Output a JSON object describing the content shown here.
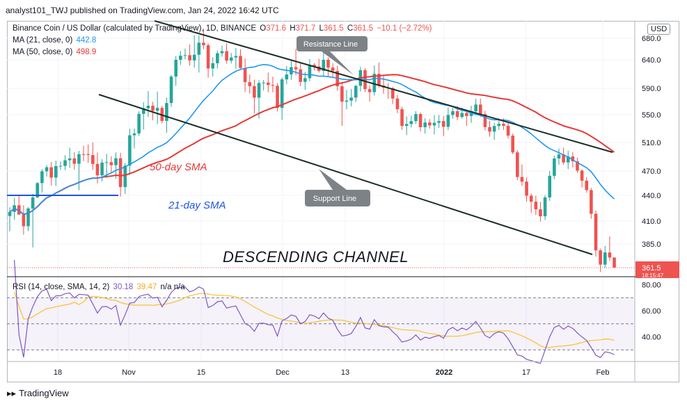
{
  "header": {
    "publisher_line": "analyst101_TWJ published on TradingView.com, Jan 24, 2022 16:42 UTC"
  },
  "legend": {
    "symbol": "Binance Coin / US Dollar (calculated by TradingView), 1D, BINANCE",
    "o_label": "O",
    "o": "371.6",
    "h_label": "H",
    "h": "371.7",
    "l_label": "L",
    "l": "361.5",
    "c_label": "C",
    "c": "361.5",
    "change": "−10.1 (−2.72%)",
    "ma21_label": "MA (21, close, 0)",
    "ma21_value": "442.8",
    "ma50_label": "MA (50, close, 0)",
    "ma50_value": "498.9",
    "rsi_label": "RSI (14, close, SMA, 14, 2)",
    "rsi_value": "30.18",
    "rsi_sma_value": "39.47",
    "rsi_na": "n/a  n/a"
  },
  "currency_button": "USD",
  "footer": {
    "brand": "TradingView"
  },
  "chart_data": {
    "type": "candlestick",
    "y_ticks": [
      "680.0",
      "640.0",
      "590.0",
      "550.0",
      "510.0",
      "470.0",
      "440.0",
      "410.0",
      "385.0"
    ],
    "last_price": "361.5",
    "last_price_sub": "18:15:47",
    "x_ticks": [
      "18",
      "Nov",
      "15",
      "Dec",
      "13",
      "2022",
      "17",
      "Feb"
    ],
    "annotations": {
      "resistance": "Resistance Line",
      "support": "Support Line",
      "sma50": "50-day SMA",
      "sma21": "21-day SMA",
      "channel": "DESCENDING CHANNEL"
    },
    "rsi_ticks": [
      "80.00",
      "60.00",
      "40.00"
    ],
    "colors": {
      "up": "#26a69a",
      "down": "#ef5350",
      "ma21": "#2196f3",
      "ma50": "#e53935",
      "rsi": "#7e57c2",
      "rsi_sma": "#fbc02d",
      "channel": "#1b2d24"
    },
    "candles": [
      [
        415.9,
        426.1,
        398.8,
        420.7
      ],
      [
        420.7,
        437.0,
        411.6,
        428.4
      ],
      [
        428.4,
        439.6,
        417.3,
        417.6
      ],
      [
        417.6,
        428.5,
        395.2,
        404.4
      ],
      [
        404.4,
        426.3,
        399.0,
        424.7
      ],
      [
        424.7,
        442.0,
        381.6,
        437.6
      ],
      [
        437.6,
        456.3,
        437.0,
        455.1
      ],
      [
        455.1,
        472.7,
        443.7,
        469.7
      ],
      [
        469.7,
        478.4,
        463.2,
        475.3
      ],
      [
        475.3,
        482.6,
        452.1,
        461.9
      ],
      [
        461.9,
        484.7,
        451.6,
        476.9
      ],
      [
        476.9,
        483.5,
        471.8,
        477.1
      ],
      [
        477.1,
        492.3,
        471.4,
        485.1
      ],
      [
        485.1,
        502.8,
        474.4,
        487.7
      ],
      [
        487.7,
        496.4,
        471.8,
        480.2
      ],
      [
        480.2,
        498.3,
        446.3,
        493.6
      ],
      [
        493.6,
        505.4,
        483.7,
        493.2
      ],
      [
        493.6,
        507.3,
        481.5,
        492.4
      ],
      [
        492.4,
        510.1,
        471.6,
        479.9
      ],
      [
        479.9,
        496.1,
        454.8,
        464.7
      ],
      [
        464.7,
        486.6,
        457.2,
        481.8
      ],
      [
        481.8,
        494.2,
        461.4,
        482.4
      ],
      [
        482.4,
        490.7,
        467.8,
        478.2
      ],
      [
        478.2,
        496.0,
        460.6,
        487.9
      ],
      [
        487.9,
        495.7,
        438.6,
        450.2
      ],
      [
        450.2,
        481.4,
        441.8,
        477.6
      ],
      [
        477.6,
        529.8,
        465.1,
        520.4
      ],
      [
        520.4,
        530.3,
        501.7,
        523.1
      ],
      [
        523.1,
        555.3,
        519.8,
        551.3
      ],
      [
        551.3,
        568.8,
        528.7,
        559.7
      ],
      [
        559.7,
        585.7,
        546.7,
        563.6
      ],
      [
        563.6,
        569.6,
        541.9,
        555.9
      ],
      [
        555.9,
        584.8,
        536.6,
        560.3
      ],
      [
        560.3,
        563.6,
        537.5,
        541.1
      ],
      [
        541.1,
        575.9,
        524.0,
        567.7
      ],
      [
        567.7,
        613.3,
        561.9,
        610.5
      ],
      [
        610.5,
        647.1,
        594.4,
        640.0
      ],
      [
        640.0,
        656.4,
        631.0,
        647.6
      ],
      [
        647.6,
        660.7,
        640.8,
        648.6
      ],
      [
        648.6,
        668.3,
        629.8,
        638.9
      ],
      [
        638.9,
        685.6,
        626.4,
        649.4
      ],
      [
        649.4,
        685.6,
        617.6,
        671.7
      ],
      [
        671.7,
        697.9,
        659.6,
        667.0
      ],
      [
        667.0,
        670.5,
        608.6,
        624.8
      ],
      [
        624.8,
        644.7,
        610.7,
        633.9
      ],
      [
        633.9,
        657.0,
        624.6,
        652.2
      ],
      [
        652.2,
        666.2,
        645.8,
        656.0
      ],
      [
        656.0,
        670.3,
        633.3,
        638.5
      ],
      [
        638.5,
        652.6,
        633.6,
        644.2
      ],
      [
        644.2,
        661.8,
        624.4,
        647.1
      ],
      [
        647.1,
        659.4,
        623.7,
        625.6
      ],
      [
        625.6,
        642.4,
        584.3,
        600.8
      ],
      [
        600.8,
        614.2,
        581.8,
        593.8
      ],
      [
        593.8,
        605.2,
        551.9,
        575.8
      ],
      [
        575.8,
        604.4,
        544.4,
        599.3
      ],
      [
        599.3,
        604.7,
        586.7,
        600.0
      ],
      [
        600.0,
        617.7,
        584.1,
        595.8
      ],
      [
        595.8,
        610.4,
        584.0,
        594.4
      ],
      [
        594.4,
        599.0,
        555.0,
        560.3
      ],
      [
        560.3,
        608.9,
        542.7,
        605.6
      ],
      [
        605.6,
        629.2,
        597.0,
        614.2
      ],
      [
        614.2,
        640.6,
        604.8,
        627.2
      ],
      [
        627.2,
        660.1,
        613.0,
        623.2
      ],
      [
        623.2,
        635.3,
        593.8,
        601.3
      ],
      [
        601.3,
        618.8,
        587.8,
        607.8
      ],
      [
        607.8,
        641.1,
        602.4,
        631.3
      ],
      [
        631.3,
        634.4,
        621.2,
        628.3
      ],
      [
        628.3,
        641.9,
        617.4,
        620.5
      ],
      [
        620.5,
        661.3,
        611.7,
        640.0
      ],
      [
        640.0,
        644.3,
        611.1,
        626.4
      ],
      [
        626.4,
        634.0,
        610.2,
        620.7
      ],
      [
        620.7,
        629.8,
        586.1,
        593.5
      ],
      [
        593.5,
        600.4,
        534.1,
        569.7
      ],
      [
        569.7,
        587.6,
        558.2,
        571.3
      ],
      [
        571.3,
        588.8,
        562.7,
        575.9
      ],
      [
        575.9,
        596.1,
        569.3,
        594.3
      ],
      [
        594.3,
        627.5,
        585.1,
        621.8
      ],
      [
        621.8,
        625.5,
        584.3,
        588.7
      ],
      [
        588.7,
        594.8,
        569.7,
        584.2
      ],
      [
        584.2,
        630.0,
        578.9,
        615.4
      ],
      [
        615.4,
        635.1,
        591.6,
        594.7
      ],
      [
        594.7,
        611.5,
        581.8,
        591.1
      ],
      [
        591.1,
        599.3,
        574.2,
        590.1
      ],
      [
        590.1,
        592.2,
        566.3,
        574.5
      ],
      [
        574.5,
        580.1,
        552.4,
        558.3
      ],
      [
        558.3,
        561.9,
        528.3,
        533.9
      ],
      [
        533.9,
        547.6,
        520.7,
        536.6
      ],
      [
        536.6,
        548.6,
        531.5,
        540.8
      ],
      [
        540.8,
        555.4,
        536.9,
        551.0
      ],
      [
        551.0,
        553.4,
        525.9,
        532.0
      ],
      [
        532.0,
        544.8,
        522.9,
        538.8
      ],
      [
        538.8,
        543.6,
        529.8,
        534.6
      ],
      [
        534.6,
        549.2,
        521.7,
        538.4
      ],
      [
        538.4,
        549.5,
        531.1,
        540.8
      ],
      [
        540.8,
        548.2,
        519.2,
        532.6
      ],
      [
        532.6,
        560.9,
        527.8,
        549.6
      ],
      [
        549.6,
        560.6,
        544.2,
        555.4
      ],
      [
        555.4,
        563.1,
        541.9,
        546.7
      ],
      [
        546.7,
        560.6,
        544.4,
        552.6
      ],
      [
        552.6,
        556.6,
        533.8,
        548.1
      ],
      [
        548.1,
        563.5,
        538.4,
        555.2
      ],
      [
        555.2,
        574.3,
        549.3,
        565.4
      ],
      [
        565.4,
        574.5,
        546.6,
        551.0
      ],
      [
        551.0,
        555.9,
        527.4,
        532.2
      ],
      [
        532.2,
        541.2,
        518.4,
        525.7
      ],
      [
        525.7,
        538.2,
        513.6,
        533.7
      ],
      [
        533.7,
        545.1,
        527.9,
        536.9
      ],
      [
        536.9,
        544.8,
        528.3,
        534.0
      ],
      [
        534.0,
        542.3,
        515.8,
        519.9
      ],
      [
        519.9,
        522.9,
        493.6,
        496.1
      ],
      [
        496.1,
        499.1,
        458.5,
        462.6
      ],
      [
        462.6,
        479.1,
        451.6,
        456.9
      ],
      [
        456.9,
        462.1,
        432.7,
        439.6
      ],
      [
        439.6,
        442.2,
        419.5,
        432.6
      ],
      [
        432.6,
        439.6,
        417.0,
        423.7
      ],
      [
        423.7,
        432.4,
        409.6,
        415.6
      ],
      [
        415.6,
        440.2,
        411.2,
        437.6
      ],
      [
        437.6,
        470.1,
        433.6,
        464.1
      ],
      [
        464.1,
        491.3,
        460.0,
        487.6
      ],
      [
        487.6,
        501.4,
        478.7,
        493.3
      ],
      [
        493.3,
        502.7,
        478.7,
        482.0
      ],
      [
        482.0,
        498.6,
        472.7,
        490.5
      ],
      [
        490.5,
        496.4,
        474.8,
        483.6
      ],
      [
        483.6,
        488.8,
        467.6,
        470.6
      ],
      [
        470.6,
        472.4,
        449.8,
        458.1
      ],
      [
        458.1,
        462.6,
        443.2,
        446.5
      ],
      [
        446.5,
        449.2,
        412.8,
        418.5
      ],
      [
        418.5,
        422.2,
        372.4,
        378.7
      ],
      [
        378.7,
        380.4,
        357.1,
        364.5
      ],
      [
        364.5,
        383.0,
        361.7,
        376.6
      ],
      [
        376.6,
        393.3,
        368.4,
        371.6
      ],
      [
        371.6,
        371.7,
        361.5,
        361.5
      ]
    ]
  }
}
